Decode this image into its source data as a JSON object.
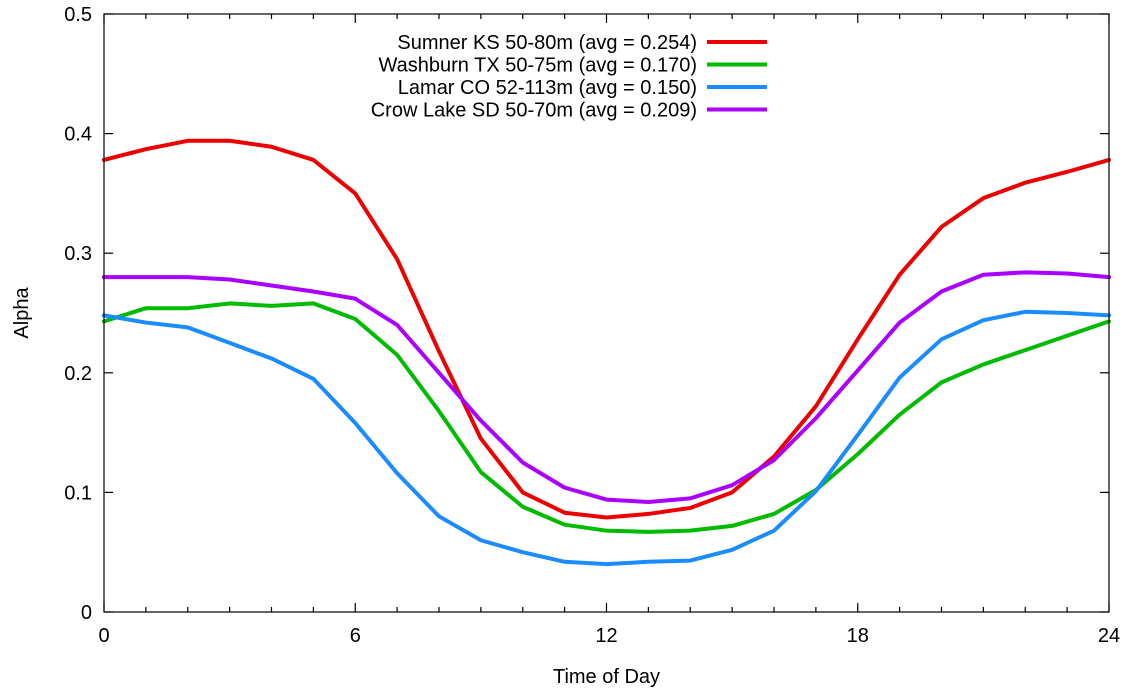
{
  "chart_data": {
    "type": "line",
    "title": "",
    "xlabel": "Time of Day",
    "ylabel": "Alpha",
    "xlim": [
      0,
      24
    ],
    "ylim": [
      0,
      0.5
    ],
    "x_ticks": [
      0,
      6,
      12,
      18,
      24
    ],
    "x_tick_labels": [
      "0",
      "6",
      "12",
      "18",
      "24"
    ],
    "x_minor_step": 1,
    "y_ticks": [
      0,
      0.1,
      0.2,
      0.3,
      0.4,
      0.5
    ],
    "y_tick_labels": [
      "0",
      "0.1",
      "0.2",
      "0.3",
      "0.4",
      "0.5"
    ],
    "grid": false,
    "legend_position": "top-center",
    "x": [
      0,
      1,
      2,
      3,
      4,
      5,
      6,
      7,
      8,
      9,
      10,
      11,
      12,
      13,
      14,
      15,
      16,
      17,
      18,
      19,
      20,
      21,
      22,
      23,
      24
    ],
    "series": [
      {
        "name": "Sumner KS 50-80m (avg = 0.254)",
        "color": "#ee0000",
        "values": [
          0.378,
          0.387,
          0.394,
          0.394,
          0.389,
          0.378,
          0.35,
          0.295,
          0.218,
          0.145,
          0.1,
          0.083,
          0.079,
          0.082,
          0.087,
          0.1,
          0.13,
          0.172,
          0.228,
          0.282,
          0.322,
          0.346,
          0.359,
          0.368,
          0.378
        ]
      },
      {
        "name": "Washburn TX 50-75m (avg = 0.170)",
        "color": "#00bb00",
        "values": [
          0.243,
          0.254,
          0.254,
          0.258,
          0.256,
          0.258,
          0.245,
          0.215,
          0.168,
          0.117,
          0.088,
          0.073,
          0.068,
          0.067,
          0.068,
          0.072,
          0.082,
          0.102,
          0.132,
          0.165,
          0.192,
          0.207,
          0.219,
          0.231,
          0.243
        ]
      },
      {
        "name": "Lamar CO 52-113m (avg = 0.150)",
        "color": "#1a8cff",
        "values": [
          0.248,
          0.242,
          0.238,
          0.225,
          0.212,
          0.195,
          0.158,
          0.116,
          0.08,
          0.06,
          0.05,
          0.042,
          0.04,
          0.042,
          0.043,
          0.052,
          0.068,
          0.101,
          0.148,
          0.196,
          0.228,
          0.244,
          0.251,
          0.25,
          0.248
        ]
      },
      {
        "name": "Crow Lake SD 50-70m (avg = 0.209)",
        "color": "#aa00ff",
        "values": [
          0.28,
          0.28,
          0.28,
          0.278,
          0.273,
          0.268,
          0.262,
          0.24,
          0.2,
          0.16,
          0.125,
          0.104,
          0.094,
          0.092,
          0.095,
          0.106,
          0.127,
          0.162,
          0.202,
          0.242,
          0.268,
          0.282,
          0.284,
          0.283,
          0.28
        ]
      }
    ]
  }
}
